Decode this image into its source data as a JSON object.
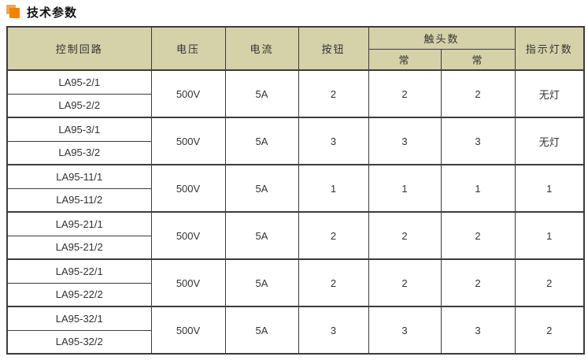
{
  "title": {
    "text": "技术参数"
  },
  "colors": {
    "header_bg": "#d5d1a8",
    "border": "#3c3c3c",
    "icon_orange_front": "#ee8400",
    "icon_orange_back": "#f6a54e",
    "text": "#333333"
  },
  "table": {
    "headers": {
      "control_circuit": "控制回路",
      "voltage": "电压",
      "current": "电流",
      "button": "按钮",
      "contacts_group": "触头数",
      "contacts_sub_a": "常",
      "contacts_sub_b": "常",
      "indicator": "指示灯数"
    },
    "groups": [
      {
        "models": [
          "LA95-2/1",
          "LA95-2/2"
        ],
        "voltage": "500V",
        "current": "5A",
        "button": "2",
        "contact_a": "2",
        "contact_b": "2",
        "indicator": "无灯"
      },
      {
        "models": [
          "LA95-3/1",
          "LA95-3/2"
        ],
        "voltage": "500V",
        "current": "5A",
        "button": "3",
        "contact_a": "3",
        "contact_b": "3",
        "indicator": "无灯"
      },
      {
        "models": [
          "LA95-11/1",
          "LA95-11/2"
        ],
        "voltage": "500V",
        "current": "5A",
        "button": "1",
        "contact_a": "1",
        "contact_b": "1",
        "indicator": "1"
      },
      {
        "models": [
          "LA95-21/1",
          "LA95-21/2"
        ],
        "voltage": "500V",
        "current": "5A",
        "button": "2",
        "contact_a": "2",
        "contact_b": "2",
        "indicator": "1"
      },
      {
        "models": [
          "LA95-22/1",
          "LA95-22/2"
        ],
        "voltage": "500V",
        "current": "5A",
        "button": "2",
        "contact_a": "2",
        "contact_b": "2",
        "indicator": "2"
      },
      {
        "models": [
          "LA95-32/1",
          "LA95-32/2"
        ],
        "voltage": "500V",
        "current": "5A",
        "button": "3",
        "contact_a": "3",
        "contact_b": "3",
        "indicator": "2"
      }
    ]
  }
}
